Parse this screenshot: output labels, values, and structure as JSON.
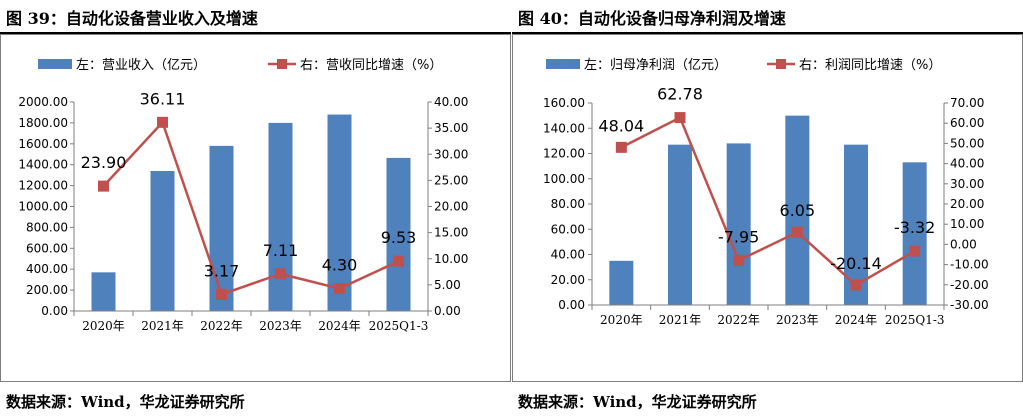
{
  "left": {
    "title": "图 39：自动化设备营业收入及增速",
    "source": "数据来源：Wind，华龙证券研究所"
  },
  "right": {
    "title": "图 40：自动化设备归母净利润及增速",
    "source": "数据来源：Wind，华龙证券研究所"
  },
  "colors": {
    "bar": "#4f81bd",
    "line": "#c0504d"
  },
  "chart_data": [
    {
      "type": "bar",
      "title": "图 39：自动化设备营业收入及增速",
      "categories": [
        "2020年",
        "2021年",
        "2022年",
        "2023年",
        "2024年",
        "2025Q1-3"
      ],
      "series": [
        {
          "name": "左：营业收入（亿元）",
          "type": "bar",
          "axis": "left",
          "values": [
            370,
            1340,
            1580,
            1800,
            1880,
            1465
          ]
        },
        {
          "name": "右：营收同比增速（%）",
          "type": "line",
          "axis": "right",
          "values": [
            23.9,
            36.11,
            3.17,
            7.11,
            4.3,
            9.53
          ],
          "labels": [
            "23.90",
            "36.11",
            "3.17",
            "7.11",
            "4.30",
            "9.53"
          ]
        }
      ],
      "left_axis": {
        "ylim": [
          0,
          2000
        ],
        "ticks": [
          "0.00",
          "200.00",
          "400.00",
          "600.00",
          "800.00",
          "1000.00",
          "1200.00",
          "1400.00",
          "1600.00",
          "1800.00",
          "2000.00"
        ]
      },
      "right_axis": {
        "ylim": [
          0,
          40
        ],
        "ticks": [
          "0.00",
          "5.00",
          "10.00",
          "15.00",
          "20.00",
          "25.00",
          "30.00",
          "35.00",
          "40.00"
        ]
      },
      "legend": "top",
      "grid": false
    },
    {
      "type": "bar",
      "title": "图 40：自动化设备归母净利润及增速",
      "categories": [
        "2020年",
        "2021年",
        "2022年",
        "2023年",
        "2024年",
        "2025Q1-3"
      ],
      "series": [
        {
          "name": "左：归母净利润（亿元）",
          "type": "bar",
          "axis": "left",
          "values": [
            35,
            127,
            128,
            150,
            127,
            113
          ]
        },
        {
          "name": "右：利润同比增速（%）",
          "type": "line",
          "axis": "right",
          "values": [
            48.04,
            62.78,
            -7.95,
            6.05,
            -20.14,
            -3.32
          ],
          "labels": [
            "48.04",
            "62.78",
            "-7.95",
            "6.05",
            "-20.14",
            "-3.32"
          ]
        }
      ],
      "left_axis": {
        "ylim": [
          0,
          160
        ],
        "ticks": [
          "0.00",
          "20.00",
          "40.00",
          "60.00",
          "80.00",
          "100.00",
          "120.00",
          "140.00",
          "160.00"
        ]
      },
      "right_axis": {
        "ylim": [
          -30,
          70
        ],
        "ticks": [
          "-30.00",
          "-20.00",
          "-10.00",
          "0.00",
          "10.00",
          "20.00",
          "30.00",
          "40.00",
          "50.00",
          "60.00",
          "70.00"
        ]
      },
      "legend": "top",
      "grid": false
    }
  ]
}
